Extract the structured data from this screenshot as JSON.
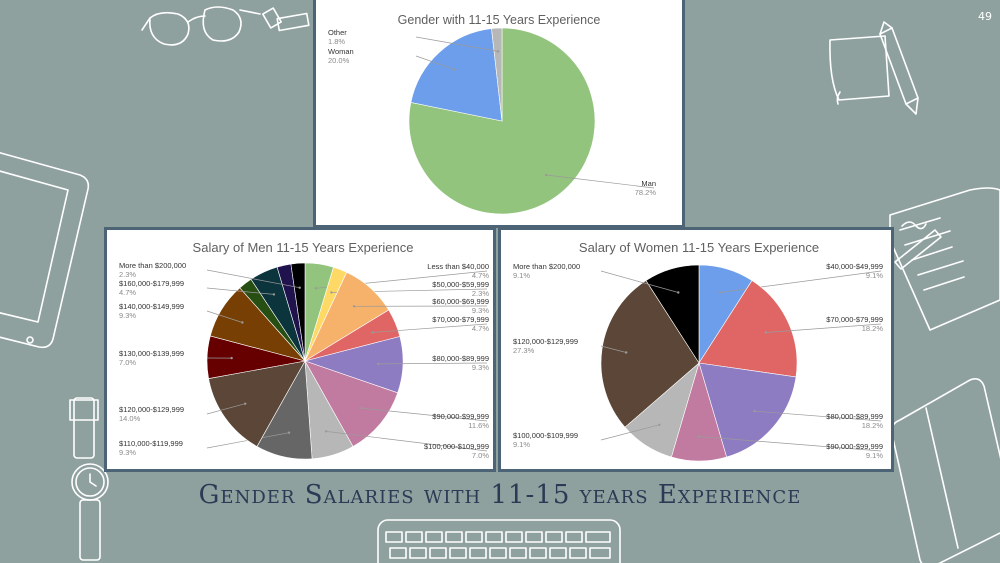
{
  "slide": {
    "title": "Gender Salaries with 11-15 years Experience",
    "page_number": "49",
    "background": "#8fa19f"
  },
  "chart_data": [
    {
      "type": "pie",
      "title": "Gender with 11-15 Years Experience",
      "start_angle": 0,
      "slices": [
        {
          "label": "Man",
          "pct_label": "78.2%",
          "value": 78.2,
          "color": "#93c47d"
        },
        {
          "label": "Woman",
          "pct_label": "20.0%",
          "value": 20.0,
          "color": "#6d9eeb"
        },
        {
          "label": "Other",
          "pct_label": "1.8%",
          "value": 1.8,
          "color": "#b7b7b7"
        }
      ]
    },
    {
      "type": "pie",
      "title": "Salary of Men 11-15 Years Experience",
      "start_angle": 0,
      "slices": [
        {
          "label": "Less than $40,000",
          "pct_label": "4.7%",
          "value": 4.7,
          "color": "#93c47d"
        },
        {
          "label": "$50,000-$59,999",
          "pct_label": "2.3%",
          "value": 2.3,
          "color": "#ffd966"
        },
        {
          "label": "$60,000-$69,999",
          "pct_label": "9.3%",
          "value": 9.3,
          "color": "#f6b26b"
        },
        {
          "label": "$70,000-$79,999",
          "pct_label": "4.7%",
          "value": 4.7,
          "color": "#e06666"
        },
        {
          "label": "$80,000-$89,999",
          "pct_label": "9.3%",
          "value": 9.3,
          "color": "#8e7cc3"
        },
        {
          "label": "$90,000-$99,999",
          "pct_label": "11.6%",
          "value": 11.6,
          "color": "#c27ba0"
        },
        {
          "label": "$100,000-$109,999",
          "pct_label": "7.0%",
          "value": 7.0,
          "color": "#b7b7b7"
        },
        {
          "label": "$110,000-$119,999",
          "pct_label": "9.3%",
          "value": 9.3,
          "color": "#666666"
        },
        {
          "label": "$120,000-$129,999",
          "pct_label": "14.0%",
          "value": 14.0,
          "color": "#5b4637"
        },
        {
          "label": "$130,000-$139,999",
          "pct_label": "7.0%",
          "value": 7.0,
          "color": "#660000"
        },
        {
          "label": "$140,000-$149,999",
          "pct_label": "9.3%",
          "value": 9.3,
          "color": "#783f04"
        },
        {
          "label": "",
          "pct_label": "",
          "value": 2.3,
          "color": "#274e13"
        },
        {
          "label": "$160,000-$179,999",
          "pct_label": "4.7%",
          "value": 4.7,
          "color": "#0c343d"
        },
        {
          "label": "",
          "pct_label": "",
          "value": 2.3,
          "color": "#20124d"
        },
        {
          "label": "More than $200,000",
          "pct_label": "2.3%",
          "value": 2.3,
          "color": "#000000"
        }
      ]
    },
    {
      "type": "pie",
      "title": "Salary of Women 11-15 Years Experience",
      "start_angle": 0,
      "slices": [
        {
          "label": "$40,000-$49,999",
          "pct_label": "9.1%",
          "value": 9.1,
          "color": "#6d9eeb"
        },
        {
          "label": "$70,000-$79,999",
          "pct_label": "18.2%",
          "value": 18.2,
          "color": "#e06666"
        },
        {
          "label": "$80,000-$89,999",
          "pct_label": "18.2%",
          "value": 18.2,
          "color": "#8e7cc3"
        },
        {
          "label": "$90,000-$99,999",
          "pct_label": "9.1%",
          "value": 9.1,
          "color": "#c27ba0"
        },
        {
          "label": "$100,000-$109,999",
          "pct_label": "9.1%",
          "value": 9.1,
          "color": "#b7b7b7"
        },
        {
          "label": "$120,000-$129,999",
          "pct_label": "27.3%",
          "value": 27.3,
          "color": "#5b4637"
        },
        {
          "label": "More than $200,000",
          "pct_label": "9.1%",
          "value": 9.1,
          "color": "#000000"
        }
      ]
    }
  ]
}
